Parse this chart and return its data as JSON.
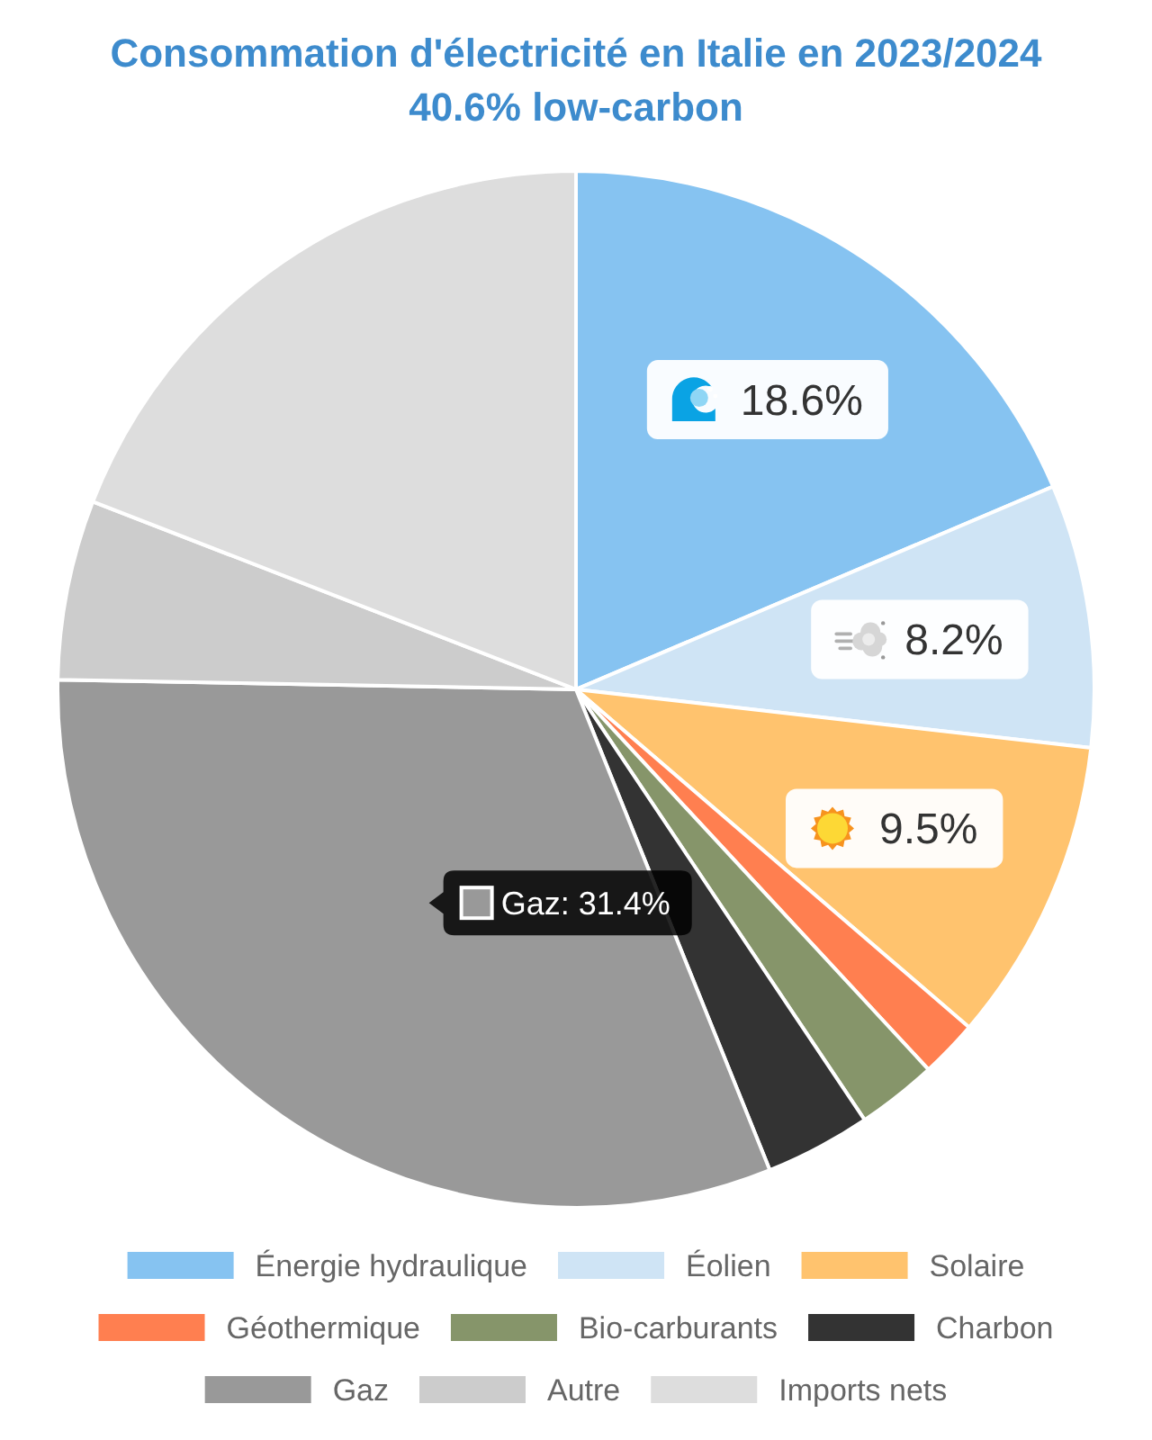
{
  "chart_data": {
    "type": "pie",
    "title": "Consommation d'électricité en Italie en 2023/2024",
    "subtitle": "40.6% low-carbon",
    "categories": [
      "Énergie hydraulique",
      "Éolien",
      "Solaire",
      "Géothermique",
      "Bio-carburants",
      "Charbon",
      "Gaz",
      "Autre",
      "Imports nets"
    ],
    "values": [
      18.6,
      8.2,
      9.5,
      1.8,
      2.5,
      3.3,
      31.4,
      5.6,
      19.1
    ],
    "colors": [
      "#86c3f1",
      "#cfe4f5",
      "#ffc36e",
      "#ff7f50",
      "#86956a",
      "#333333",
      "#999999",
      "#cccccc",
      "#dddddd"
    ],
    "value_labels": [
      "18.6%",
      "8.2%",
      "9.5%",
      null,
      null,
      null,
      null,
      null,
      null
    ],
    "annotations": [
      {
        "text": "Gaz: 31.4%",
        "x": "Gaz"
      }
    ],
    "legend": "bottom"
  }
}
